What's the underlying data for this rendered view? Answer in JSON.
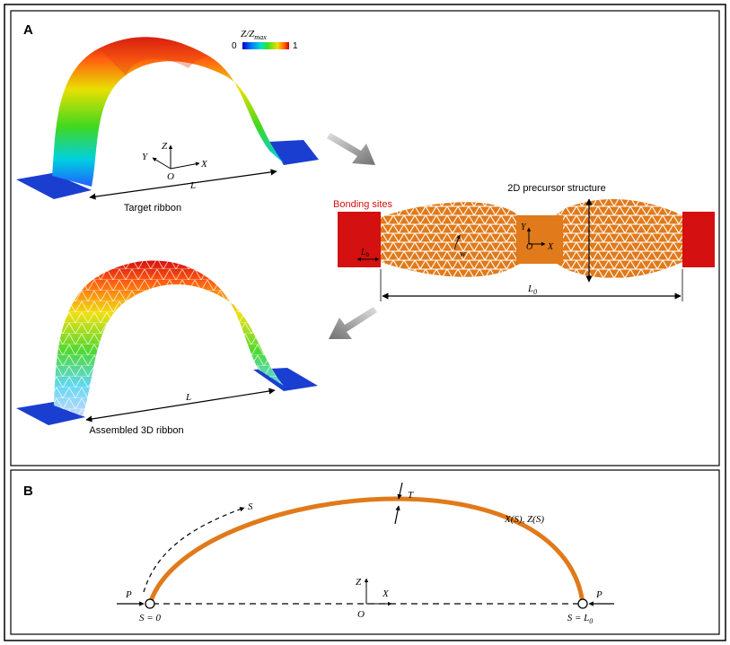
{
  "panel_a": {
    "label": "A",
    "colorbar": {
      "title_main": "Z/Z",
      "title_sub": "max",
      "min_label": "0",
      "max_label": "1"
    },
    "target_ribbon": {
      "caption": "Target ribbon",
      "length_label": "L",
      "axes": {
        "z": "Z",
        "y": "Y",
        "x": "X",
        "origin": "O"
      }
    },
    "precursor": {
      "title": "2D precursor structure",
      "bonding_label": "Bonding sites",
      "bonding_length_main": "L",
      "bonding_length_sub": "b",
      "width_label": "w",
      "precursor_length_main": "L",
      "precursor_length_sub": "0",
      "axes": {
        "y": "Y",
        "x": "X",
        "origin": "O"
      }
    },
    "assembled_ribbon": {
      "caption": "Assembled 3D ribbon",
      "length_label": "L"
    },
    "colors": {
      "bonding": "#d41010",
      "precursor": "#e07a1a",
      "substrate": "#1a3fd0"
    }
  },
  "panel_b": {
    "label": "B",
    "thickness_label": "T",
    "curve_label": "X(S), Z(S)",
    "arc_label": "S",
    "force_left": "P",
    "force_right": "P",
    "start_label": "S = 0",
    "end_label_main": "S = L",
    "end_label_sub": "0",
    "axes": {
      "z": "Z",
      "x": "X",
      "origin": "O"
    },
    "colors": {
      "ribbon": "#e07a1a"
    }
  }
}
